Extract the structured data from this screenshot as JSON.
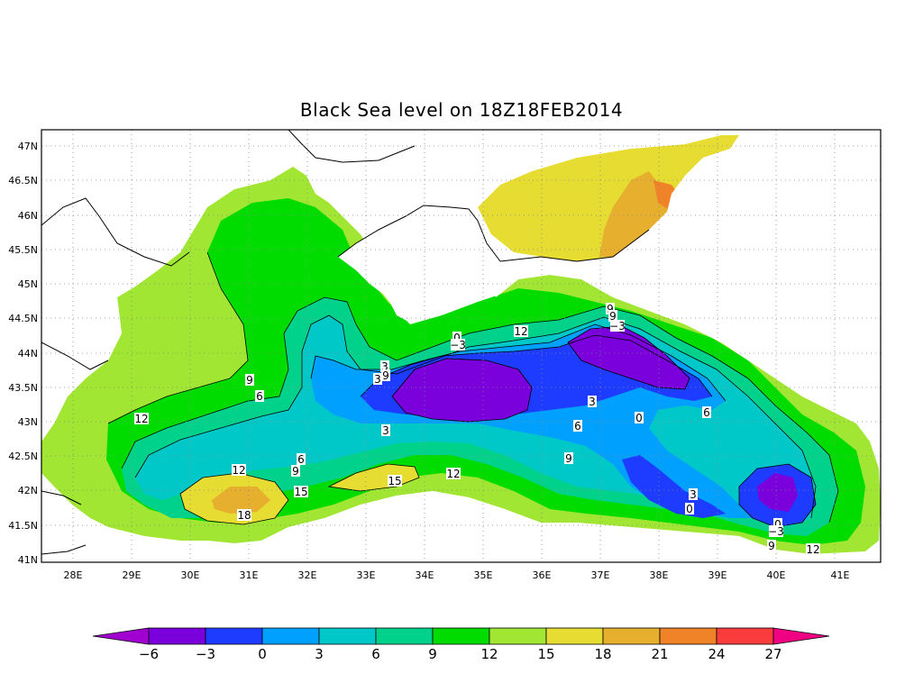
{
  "title": "Black Sea level on 18Z18FEB2014",
  "lat_labels": [
    "47N",
    "46.5N",
    "46N",
    "45.5N",
    "45N",
    "44.5N",
    "44N",
    "43.5N",
    "43N",
    "42.5N",
    "42N",
    "41.5N",
    "41N"
  ],
  "lon_labels": [
    "28E",
    "29E",
    "30E",
    "31E",
    "32E",
    "33E",
    "34E",
    "35E",
    "36E",
    "37E",
    "38E",
    "39E",
    "40E",
    "41E"
  ],
  "colorbar": {
    "labels": [
      "−6",
      "−3",
      "0",
      "3",
      "6",
      "9",
      "12",
      "15",
      "18",
      "21",
      "24",
      "27"
    ],
    "colors": [
      "#a000d0",
      "#7a00dc",
      "#1e3cff",
      "#00a0ff",
      "#00c8c8",
      "#00d28c",
      "#00dc00",
      "#a0e632",
      "#e6dc32",
      "#e6af2d",
      "#f08228",
      "#fa3c3c",
      "#f00082"
    ]
  },
  "contour_labels": [
    "12",
    "9",
    "6",
    "12",
    "9",
    "6",
    "3",
    "18",
    "15",
    "15",
    "3",
    "3",
    "9",
    "0",
    "−3",
    "12",
    "12",
    "9",
    "6",
    "3",
    "9",
    "9",
    "−3",
    "0",
    "6",
    "3",
    "0",
    "0",
    "−3",
    "9",
    "12"
  ]
}
